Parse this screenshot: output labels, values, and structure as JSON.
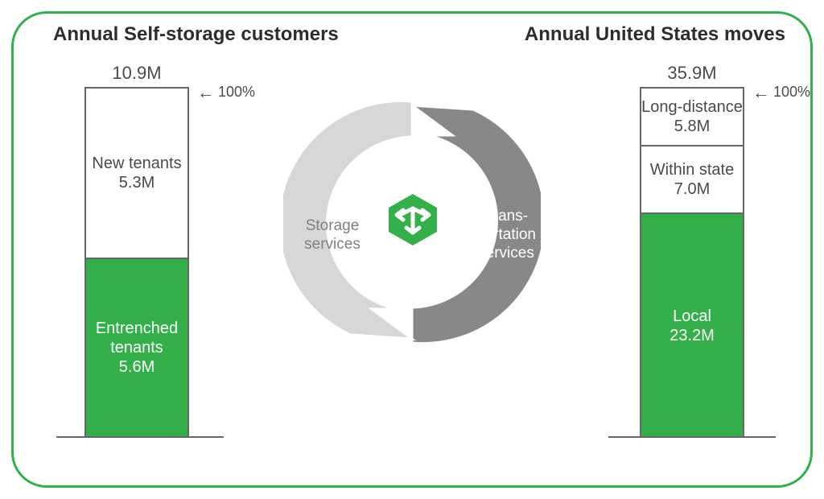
{
  "frame": {
    "border_color": "#34b04a",
    "border_width": 3,
    "radius": 44
  },
  "accent_green": "#34b04a",
  "text_dark": "#2d2d2d",
  "text_mid": "#4a4a4a",
  "left_chart": {
    "title": "Annual Self-storage customers",
    "total_label": "10.9M",
    "pct_label": "100%",
    "type": "stacked-bar",
    "segments": [
      {
        "label": "New tenants",
        "value_label": "5.3M",
        "value": 5.3,
        "fraction": 0.486,
        "fill": "#ffffff",
        "text": "#4a4a4a"
      },
      {
        "label": "Entrenched tenants",
        "value_label": "5.6M",
        "value": 5.6,
        "fraction": 0.514,
        "fill": "#34b04a",
        "text": "#ffffff"
      }
    ],
    "bar_border": "#666666",
    "title_fontsize": 24,
    "label_fontsize": 20
  },
  "right_chart": {
    "title": "Annual United States moves",
    "total_label": "35.9M",
    "pct_label": "100%",
    "type": "stacked-bar",
    "segments": [
      {
        "label": "Long-distance",
        "value_label": "5.8M",
        "value": 5.8,
        "fraction": 0.162,
        "fill": "#ffffff",
        "text": "#4a4a4a"
      },
      {
        "label": "Within state",
        "value_label": "7.0M",
        "value": 7.0,
        "fraction": 0.195,
        "fill": "#ffffff",
        "text": "#4a4a4a"
      },
      {
        "label": "Local",
        "value_label": "23.2M",
        "value": 23.2,
        "fraction": 0.646,
        "fill": "#34b04a",
        "text": "#ffffff",
        "two_line": false
      }
    ],
    "bar_border": "#666666",
    "title_fontsize": 24,
    "label_fontsize": 20
  },
  "cycle": {
    "left_label_line1": "Storage",
    "left_label_line2": "services",
    "right_label_line1": "Trans-",
    "right_label_line2": "portation",
    "right_label_line3": "services",
    "left_color": "#d7d7d7",
    "right_color": "#888888",
    "label_fontsize": 19,
    "icon_color": "#34b04a"
  }
}
